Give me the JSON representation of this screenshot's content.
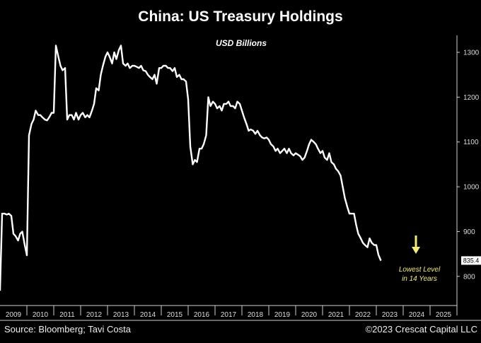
{
  "chart_data": {
    "type": "line",
    "title": "China: US Treasury Holdings",
    "subtitle": "USD Billions",
    "ylim": [
      735,
      1330
    ],
    "xlim": [
      2009.0,
      2026.0
    ],
    "yticks": [
      "800",
      "900",
      "1000",
      "1100",
      "1200",
      "1300"
    ],
    "xticks": [
      "2009",
      "2010",
      "2011",
      "2012",
      "2013",
      "2014",
      "2015",
      "2016",
      "2017",
      "2018",
      "2019",
      "2020",
      "2021",
      "2022",
      "2023",
      "2024",
      "2025"
    ],
    "last_value_label": "835.4",
    "annotation": [
      "Lowest Level",
      "in 14 Years"
    ],
    "annotation_color": "#f2ea7a",
    "line_color": "#ffffff",
    "legend": "none",
    "grid": false,
    "series": [
      {
        "x": [
          2009.0,
          2009.08,
          2009.17,
          2009.25,
          2009.33,
          2009.42,
          2009.5,
          2009.58,
          2009.67,
          2009.75,
          2009.83,
          2009.92,
          2010.0,
          2010.08,
          2010.17,
          2010.25,
          2010.33,
          2010.42,
          2010.5,
          2010.58,
          2010.67,
          2010.75,
          2010.83,
          2010.92,
          2011.0,
          2011.08,
          2011.17,
          2011.25,
          2011.33,
          2011.42,
          2011.5,
          2011.58,
          2011.67,
          2011.75,
          2011.83,
          2011.92,
          2012.0,
          2012.08,
          2012.17,
          2012.25,
          2012.33,
          2012.42,
          2012.5,
          2012.58,
          2012.67,
          2012.75,
          2012.83,
          2012.92,
          2013.0,
          2013.08,
          2013.17,
          2013.25,
          2013.33,
          2013.42,
          2013.5,
          2013.58,
          2013.67,
          2013.75,
          2013.83,
          2013.92,
          2014.0,
          2014.08,
          2014.17,
          2014.25,
          2014.33,
          2014.42,
          2014.5,
          2014.58,
          2014.67,
          2014.75,
          2014.83,
          2014.92,
          2015.0,
          2015.08,
          2015.17,
          2015.25,
          2015.33,
          2015.42,
          2015.5,
          2015.58,
          2015.67,
          2015.75,
          2015.83,
          2015.92,
          2016.0,
          2016.08,
          2016.17,
          2016.25,
          2016.33,
          2016.42,
          2016.5,
          2016.58,
          2016.67,
          2016.75,
          2016.83,
          2016.92,
          2017.0,
          2017.08,
          2017.17,
          2017.25,
          2017.33,
          2017.42,
          2017.5,
          2017.58,
          2017.67,
          2017.75,
          2017.83,
          2017.92,
          2018.0,
          2018.08,
          2018.17,
          2018.25,
          2018.33,
          2018.42,
          2018.5,
          2018.58,
          2018.67,
          2018.75,
          2018.83,
          2018.92,
          2019.0,
          2019.08,
          2019.17,
          2019.25,
          2019.33,
          2019.42,
          2019.5,
          2019.58,
          2019.67,
          2019.75,
          2019.83,
          2019.92,
          2020.0,
          2020.08,
          2020.17,
          2020.25,
          2020.33,
          2020.42,
          2020.5,
          2020.58,
          2020.67,
          2020.75,
          2020.83,
          2020.92,
          2021.0,
          2021.08,
          2021.17,
          2021.25,
          2021.33,
          2021.42,
          2021.5,
          2021.58,
          2021.67,
          2021.75,
          2021.83,
          2021.92,
          2022.0,
          2022.08,
          2022.17,
          2022.25,
          2022.33,
          2022.42,
          2022.5,
          2022.58,
          2022.67,
          2022.75,
          2022.83,
          2022.92,
          2023.0,
          2023.08,
          2023.17
        ],
        "y": [
          768,
          940,
          940,
          938,
          940,
          935,
          895,
          890,
          880,
          895,
          900,
          870,
          847,
          1115,
          1140,
          1150,
          1170,
          1160,
          1160,
          1155,
          1150,
          1148,
          1155,
          1165,
          1165,
          1315,
          1290,
          1270,
          1260,
          1265,
          1150,
          1160,
          1160,
          1150,
          1165,
          1150,
          1160,
          1165,
          1155,
          1160,
          1155,
          1170,
          1185,
          1220,
          1215,
          1250,
          1270,
          1290,
          1300,
          1290,
          1275,
          1300,
          1285,
          1305,
          1315,
          1275,
          1270,
          1275,
          1265,
          1270,
          1270,
          1268,
          1265,
          1270,
          1260,
          1258,
          1250,
          1245,
          1240,
          1250,
          1230,
          1265,
          1265,
          1270,
          1270,
          1265,
          1265,
          1258,
          1265,
          1245,
          1250,
          1240,
          1240,
          1235,
          1195,
          1090,
          1050,
          1060,
          1055,
          1085,
          1085,
          1095,
          1115,
          1200,
          1180,
          1190,
          1185,
          1175,
          1180,
          1170,
          1185,
          1185,
          1190,
          1180,
          1180,
          1175,
          1190,
          1185,
          1170,
          1155,
          1140,
          1125,
          1128,
          1125,
          1118,
          1125,
          1115,
          1110,
          1108,
          1110,
          1105,
          1095,
          1090,
          1080,
          1085,
          1075,
          1080,
          1085,
          1075,
          1085,
          1075,
          1070,
          1075,
          1072,
          1068,
          1060,
          1065,
          1080,
          1095,
          1105,
          1100,
          1095,
          1085,
          1075,
          1080,
          1065,
          1060,
          1075,
          1055,
          1050,
          1040,
          1035,
          1025,
          1000,
          975,
          955,
          940,
          940,
          940,
          915,
          895,
          885,
          875,
          870,
          865,
          885,
          875,
          870,
          870,
          848,
          835
        ]
      }
    ]
  },
  "footer": {
    "source": "Source: Bloomberg; Tavi Costa",
    "credit": "©2023 Crescat Capital LLC"
  }
}
